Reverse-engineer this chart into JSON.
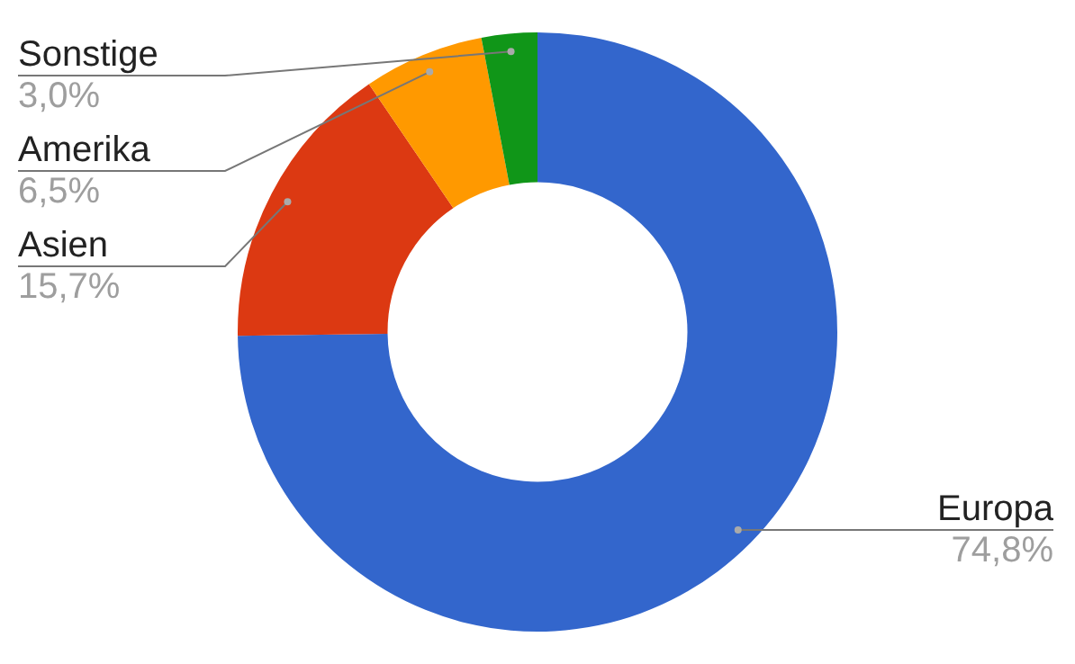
{
  "chart_data": {
    "type": "donut",
    "categories": [
      "Europa",
      "Asien",
      "Amerika",
      "Sonstige"
    ],
    "values": [
      74.8,
      15.7,
      6.5,
      3.0
    ],
    "colors": [
      "#3366cc",
      "#dc3912",
      "#ff9900",
      "#109618"
    ],
    "value_labels": [
      "74,8%",
      "15,7%",
      "6,5%",
      "3,0%"
    ],
    "legend": false
  }
}
